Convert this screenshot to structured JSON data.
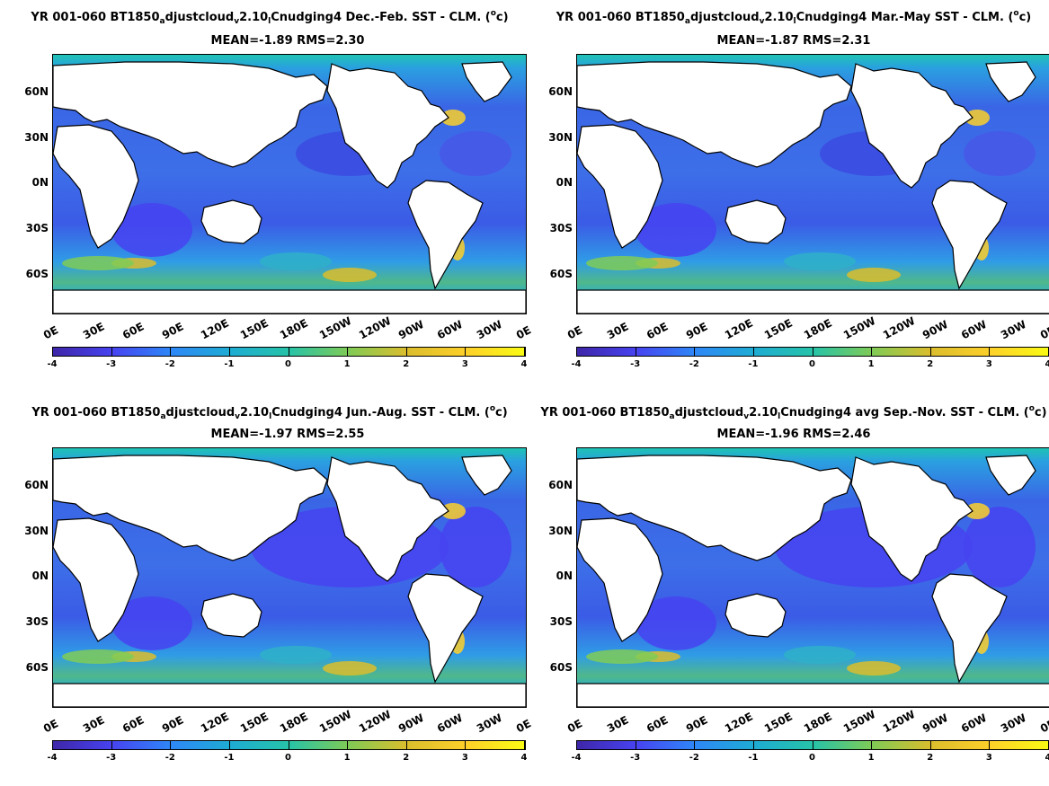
{
  "panels": [
    {
      "title_prefix": "YR 001-060 BT1850",
      "title_sub1": "a",
      "title_mid": "djustcloud",
      "title_sub2": "v",
      "title_mid2": "2.10",
      "title_sub3": "l",
      "title_suffix": "Cnudging4  Dec.-Feb. SST - CLM. (",
      "title_sup": "o",
      "title_end": "c)",
      "stats": "MEAN=-1.89   RMS=2.30"
    },
    {
      "title_prefix": "YR 001-060 BT1850",
      "title_sub1": "a",
      "title_mid": "djustcloud",
      "title_sub2": "v",
      "title_mid2": "2.10",
      "title_sub3": "l",
      "title_suffix": "Cnudging4 Mar.-May SST - CLM. (",
      "title_sup": "o",
      "title_end": "c)",
      "stats": "MEAN=-1.87   RMS=2.31"
    },
    {
      "title_prefix": "YR 001-060 BT1850",
      "title_sub1": "a",
      "title_mid": "djustcloud",
      "title_sub2": "v",
      "title_mid2": "2.10",
      "title_sub3": "l",
      "title_suffix": "Cnudging4 Jun.-Aug. SST - CLM. (",
      "title_sup": "o",
      "title_end": "c)",
      "stats": "MEAN=-1.97   RMS=2.55"
    },
    {
      "title_prefix": "YR 001-060 BT1850",
      "title_sub1": "a",
      "title_mid": "djustcloud",
      "title_sub2": "v",
      "title_mid2": "2.10",
      "title_sub3": "l",
      "title_suffix": "Cnudging4 avg Sep.-Nov. SST - CLM. (",
      "title_sup": "o",
      "title_end": "c)",
      "stats": "MEAN=-1.96   RMS=2.46"
    }
  ],
  "chart_data": {
    "type": "heatmap",
    "y_tick_labels": [
      "60N",
      "30N",
      "0N",
      "30S",
      "60S"
    ],
    "x_tick_labels": [
      "0E",
      "30E",
      "60E",
      "90E",
      "120E",
      "150E",
      "180E",
      "150W",
      "120W",
      "90W",
      "60W",
      "30W",
      "0E"
    ],
    "colorbar_ticks": [
      "-4",
      "-3",
      "-2",
      "-1",
      "0",
      "1",
      "2",
      "3",
      "4"
    ],
    "colorbar_range": [
      -4,
      4
    ],
    "colormap": [
      "#3e26a8",
      "#4743f0",
      "#2e87f7",
      "#1eacd3",
      "#26c3a8",
      "#7fcb56",
      "#dbbd2d",
      "#fdd02a",
      "#f9fb14"
    ],
    "land_color": "#ffffff",
    "colors": {
      "ice_edge": "#1ec3b5",
      "ocean_base": "#3d78e8"
    }
  }
}
